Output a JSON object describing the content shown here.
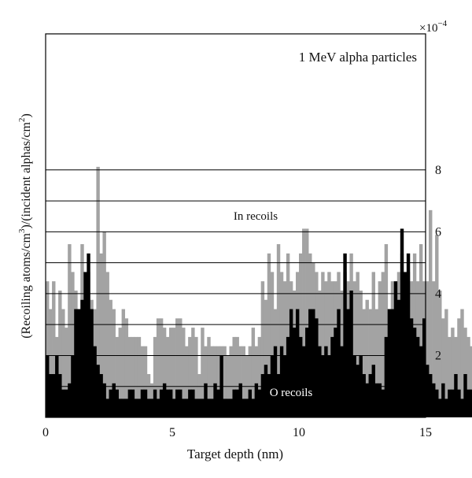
{
  "chart_data": {
    "type": "bar",
    "annotation": "1 MeV alpha particles",
    "xlabel": "Target depth (nm)",
    "ylabel_parts": [
      "(Recoiling atoms/cm",
      "3",
      ")/(incident alphas/cm",
      "2",
      ")"
    ],
    "y_multiplier": {
      "base": "×10",
      "exponent": "−4"
    },
    "xlim": [
      0,
      15
    ],
    "ylim": [
      0,
      12.4
    ],
    "x_ticks": [
      "0",
      "5",
      "10",
      "15"
    ],
    "x_tick_values": [
      0,
      5,
      10,
      15
    ],
    "y_ticks": [
      "2",
      "4",
      "6",
      "8"
    ],
    "y_tick_values": [
      2,
      4,
      6,
      8
    ],
    "gridlines_y": [
      1,
      2,
      3,
      4,
      5,
      6,
      7,
      8
    ],
    "series": [
      {
        "name": "In recoils",
        "color": "#a3a3a3",
        "x_start": 0,
        "bin_width": 0.125,
        "values": [
          4.4,
          3.5,
          4.4,
          2.6,
          4.1,
          3.5,
          2.9,
          5.6,
          4.7,
          4.1,
          3.5,
          5.6,
          4.4,
          4.7,
          3.8,
          3.5,
          8.1,
          5.3,
          6.0,
          4.7,
          3.8,
          3.5,
          2.6,
          2.9,
          3.5,
          3.2,
          2.6,
          2.6,
          2.6,
          2.6,
          2.3,
          2.3,
          1.4,
          1.1,
          2.6,
          3.2,
          3.2,
          2.9,
          2.6,
          2.9,
          2.9,
          3.2,
          3.2,
          2.9,
          2.3,
          2.6,
          2.9,
          2.6,
          1.4,
          2.9,
          2.3,
          2.6,
          2.3,
          2.3,
          2.3,
          2.3,
          2.3,
          2.0,
          2.3,
          2.6,
          2.6,
          2.3,
          2.3,
          2.0,
          2.3,
          2.9,
          2.3,
          2.6,
          4.4,
          3.8,
          5.3,
          4.7,
          3.5,
          5.6,
          4.7,
          4.4,
          5.3,
          4.4,
          4.1,
          4.7,
          5.3,
          6.1,
          6.1,
          5.3,
          5.0,
          4.7,
          4.1,
          4.7,
          4.4,
          4.7,
          4.4,
          4.4,
          4.7,
          4.1,
          4.7,
          4.4,
          5.3,
          4.4,
          4.7,
          4.1,
          3.5,
          3.8,
          3.5,
          4.7,
          3.5,
          4.4,
          4.7,
          5.6,
          3.5,
          4.4,
          4.1,
          4.7,
          5.3,
          4.4,
          4.7,
          4.4,
          5.3,
          4.4,
          5.6,
          4.4,
          4.4,
          6.7,
          4.4,
          5.9,
          4.1,
          3.2,
          3.5,
          2.6,
          2.9,
          2.6,
          3.2,
          3.5,
          2.9,
          2.6,
          2.3,
          3.2,
          2.9,
          3.5,
          3.2,
          3.2
        ]
      },
      {
        "name": "O recoils",
        "color": "#000000",
        "x_start": 0,
        "bin_width": 0.125,
        "values": [
          2.0,
          1.4,
          1.4,
          2.0,
          1.4,
          0.9,
          0.9,
          1.1,
          2.0,
          3.5,
          3.5,
          3.8,
          4.7,
          5.3,
          3.5,
          2.3,
          1.7,
          1.4,
          1.1,
          0.6,
          0.9,
          1.1,
          0.9,
          0.6,
          0.6,
          0.6,
          0.9,
          0.9,
          0.6,
          0.6,
          0.9,
          0.9,
          0.6,
          0.6,
          0.9,
          0.6,
          0.9,
          1.1,
          0.9,
          0.9,
          0.6,
          0.9,
          0.9,
          0.6,
          0.6,
          0.9,
          0.9,
          0.6,
          0.6,
          0.6,
          1.1,
          0.6,
          0.6,
          1.1,
          0.9,
          2.0,
          0.6,
          0.6,
          0.6,
          0.9,
          0.9,
          1.1,
          0.6,
          0.6,
          0.9,
          0.6,
          1.1,
          0.9,
          1.4,
          1.7,
          1.4,
          2.0,
          2.3,
          1.4,
          2.3,
          2.0,
          2.6,
          3.5,
          2.9,
          3.5,
          2.6,
          2.3,
          2.9,
          3.5,
          3.5,
          3.2,
          2.3,
          2.0,
          2.3,
          2.0,
          2.6,
          2.9,
          3.5,
          2.3,
          5.3,
          3.5,
          4.1,
          2.0,
          1.7,
          2.0,
          1.4,
          1.1,
          1.4,
          1.7,
          1.1,
          1.1,
          0.9,
          2.6,
          3.5,
          3.5,
          4.4,
          3.8,
          6.1,
          4.7,
          5.3,
          3.2,
          2.9,
          2.6,
          2.3,
          3.2,
          1.7,
          1.4,
          1.1,
          0.9,
          0.6,
          1.1,
          0.6,
          0.9,
          0.9,
          1.4,
          0.9,
          0.6,
          1.4,
          0.9,
          0.9,
          1.1,
          0.6,
          0.9,
          1.1,
          0.6
        ]
      }
    ],
    "series_labels_in_plot": [
      "In recoils",
      "O recoils"
    ],
    "legend": "inline labels",
    "grid": "horizontal lines"
  }
}
